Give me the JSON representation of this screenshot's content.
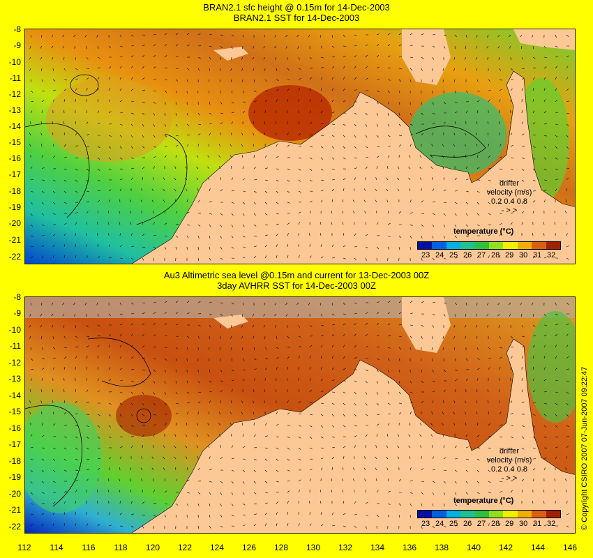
{
  "top_panel": {
    "title_line1": "BRAN2.1 sfc height @ 0.15m for 14-Dec-2003",
    "title_line2": "BRAN2.1 SST for 14-Dec-2003"
  },
  "bottom_panel": {
    "title_line1": "Au3 Altimetric sea level  @0.15m and current for 13-Dec-2003 00Z",
    "title_line2": "3day AVHRR SST for 14-Dec-2003 00Z"
  },
  "lat_ticks": [
    "-8",
    "-9",
    "-10",
    "-11",
    "-12",
    "-13",
    "-14",
    "-15",
    "-16",
    "-17",
    "-18",
    "-19",
    "-20",
    "-21",
    "-22"
  ],
  "lon_ticks": [
    "112",
    "114",
    "116",
    "118",
    "120",
    "122",
    "124",
    "126",
    "128",
    "130",
    "132",
    "134",
    "136",
    "138",
    "140",
    "142",
    "144",
    "146"
  ],
  "legend": {
    "title": "temperature (°C)",
    "labels": [
      "23",
      "24",
      "25",
      "26",
      "27",
      "28",
      "29",
      "30",
      "31",
      "32"
    ],
    "colors": [
      "#0010a0",
      "#0060e0",
      "#00b0e0",
      "#20c090",
      "#30c040",
      "#90e020",
      "#f0f000",
      "#f0b000",
      "#d86010",
      "#a02000"
    ]
  },
  "drifter": {
    "line1": "drifter",
    "line2": "velocity (m/s)",
    "line3": "0.2  0.4  0.8",
    "line4": "-    >    >"
  },
  "copyright": "© Copyright CSIRO 2007  07-Jun-2007 09:22:47",
  "colors": {
    "background": "#ffff00",
    "land": "#fcc896",
    "no_data": "#b8a89a"
  }
}
